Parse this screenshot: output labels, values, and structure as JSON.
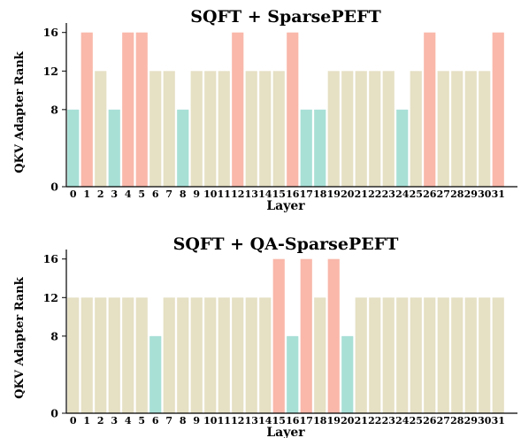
{
  "chart_data": [
    {
      "type": "bar",
      "title": "SQFT + SparsePEFT",
      "xlabel": "Layer",
      "ylabel": "QKV Adapter Rank",
      "categories": [
        "0",
        "1",
        "2",
        "3",
        "4",
        "5",
        "6",
        "7",
        "8",
        "9",
        "10",
        "11",
        "12",
        "13",
        "14",
        "15",
        "16",
        "17",
        "18",
        "19",
        "20",
        "21",
        "22",
        "23",
        "24",
        "25",
        "26",
        "27",
        "28",
        "29",
        "30",
        "31"
      ],
      "values": [
        8,
        16,
        12,
        8,
        16,
        16,
        12,
        12,
        8,
        12,
        12,
        12,
        16,
        12,
        12,
        12,
        16,
        8,
        8,
        12,
        12,
        12,
        12,
        12,
        8,
        12,
        16,
        12,
        12,
        12,
        12,
        16
      ],
      "yticks": [
        "0",
        "8",
        "12",
        "16"
      ],
      "ylim": [
        0,
        16.8
      ],
      "grid": false
    },
    {
      "type": "bar",
      "title": "SQFT + QA-SparsePEFT",
      "xlabel": "Layer",
      "ylabel": "QKV Adapter Rank",
      "categories": [
        "0",
        "1",
        "2",
        "3",
        "4",
        "5",
        "6",
        "7",
        "8",
        "9",
        "10",
        "11",
        "12",
        "13",
        "14",
        "15",
        "16",
        "17",
        "18",
        "19",
        "20",
        "21",
        "22",
        "23",
        "24",
        "25",
        "26",
        "27",
        "28",
        "29",
        "30",
        "31"
      ],
      "values": [
        12,
        12,
        12,
        12,
        12,
        12,
        8,
        12,
        12,
        12,
        12,
        12,
        12,
        12,
        12,
        16,
        8,
        16,
        12,
        16,
        8,
        12,
        12,
        12,
        12,
        12,
        12,
        12,
        12,
        12,
        12,
        12
      ],
      "yticks": [
        "0",
        "8",
        "12",
        "16"
      ],
      "ylim": [
        0,
        16.8
      ],
      "grid": false
    }
  ],
  "colors": {
    "rank_8": "#a8e0d6",
    "rank_12": "#e6e0c4",
    "rank_16": "#f9b8aa",
    "axis": "#000000"
  }
}
